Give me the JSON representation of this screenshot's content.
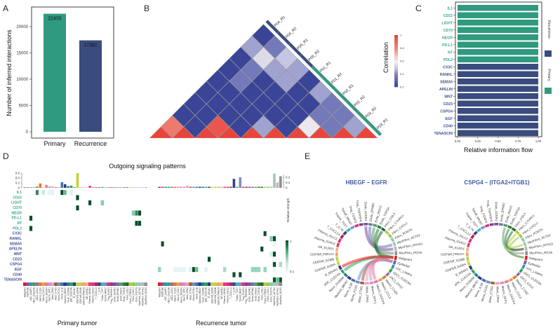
{
  "panel_letters": [
    "A",
    "B",
    "C",
    "D",
    "E"
  ],
  "colors": {
    "primary": "#2f9a80",
    "recurrence": "#3a4c7d",
    "label_green": "#3aa68b",
    "label_navy": "#3d4f8f",
    "title_blue": "#3f58a0"
  },
  "cell_types": [
    "Malignant",
    "Epithelial",
    "cDC_LAMP3",
    "cDC1_CLEC9A",
    "cDC2_CD1C",
    "Macro_C1QC",
    "Macro_CCL3",
    "Macro_DOCK4",
    "Macro_SPP1",
    "Mast_CPA3",
    "Mast_CTSG",
    "Mono_FCN1",
    "Mono_IL1B",
    "Myeloid_MKI67",
    "Neutr_S100A8",
    "pDC_CLEC4A",
    "B_MS4A1",
    "CD8Teff_GZMA",
    "CD8Teff_GZMB",
    "CD8Teff_PRKCH",
    "NK_KLRD1",
    "Plasma_IGHG2",
    "Plasma_IGLC2",
    "T_CXCL13",
    "T_IL7R",
    "Tnaive_TCF7",
    "Tprolif_MKI67",
    "Treg_FOXP3",
    "Treg_TNFRSF4",
    "Endo_ACKR1",
    "Endo_EFNB2",
    "Endo_RGCC",
    "Endo_TOP2A",
    "Fibro_COL3",
    "Fibro_CTHRC1",
    "Fibro_CXCL1",
    "Fibro_POSTN",
    "MyoFibro_ACTA2",
    "MyoFibro_MYH11",
    "MyoFibro_RGS5"
  ],
  "cell_colors": [
    "#e41a1c",
    "#7a5aa0",
    "#2f8fc0",
    "#3aa24a",
    "#9a6aa8",
    "#e07b2a",
    "#f29a55",
    "#e8779f",
    "#c993c6",
    "#ef9ec1",
    "#a05a2c",
    "#6e8fc8",
    "#4d6fae",
    "#263a8f",
    "#1f7f8a",
    "#2ca25f",
    "#2b3a8a",
    "#c6d33c",
    "#b9d448",
    "#f6a16a",
    "#f0b57e",
    "#e5397a",
    "#d2337f",
    "#b5235a",
    "#3a3f86",
    "#3ab7c8",
    "#8a8ac0",
    "#d4317c",
    "#8b3a8f",
    "#7a4d9a",
    "#6a74b5",
    "#5e9a6e",
    "#2e7d3a",
    "#1f6a30",
    "#b5c93a",
    "#9cc83c",
    "#7fcdb0",
    "#a0c8b8",
    "#b8b8b8",
    "#8f8f8f"
  ],
  "chart_data": [
    {
      "type": "bar",
      "title": "",
      "ylabel": "Number of inferred interactions",
      "categories": [
        "Primary",
        "Recurrence"
      ],
      "values": [
        22455,
        17391
      ],
      "value_labels": [
        "22455",
        "17391"
      ],
      "yticks": [
        "0",
        "5000",
        "10000",
        "15000",
        "20000"
      ],
      "ylim": [
        0,
        23500
      ]
    },
    {
      "type": "heatmap",
      "title": "",
      "legend_title": "Correlation",
      "legend_ticks": [
        "0.2",
        "0.4",
        "0.6",
        "0.8",
        "1"
      ],
      "samples": [
        "P04_R1",
        "P04_R2",
        "P05_R1",
        "P05_R2",
        "P01_R1",
        "P01_R2",
        "P02_R1",
        "P02_R2",
        "P03_R2",
        "P03_R1"
      ],
      "sample_groups": [
        "Recurrence",
        "Recurrence",
        "Recurrence",
        "Recurrence",
        "Primary",
        "Primary",
        "Primary",
        "Primary",
        "Primary",
        "Primary"
      ],
      "values_by_offset": [
        [
          1,
          1,
          1,
          1,
          1,
          1,
          1,
          1,
          1,
          1
        ],
        [
          0.85,
          0.22,
          0.95,
          0.22,
          0.45,
          0.22,
          0.58,
          0.38,
          0.45
        ],
        [
          0.22,
          0.22,
          0.22,
          0.22,
          0.22,
          0.22,
          0.38,
          0.38
        ],
        [
          0.22,
          0.22,
          0.22,
          0.22,
          0.22,
          0.22,
          0.38
        ],
        [
          0.22,
          0.22,
          0.22,
          0.22,
          0.22,
          0.45
        ],
        [
          0.22,
          0.38,
          0.22,
          0.45,
          0.22
        ],
        [
          0.22,
          0.38,
          0.45,
          0.45
        ],
        [
          0.22,
          0.55,
          0.5
        ],
        [
          0.45,
          0.38
        ],
        [
          0.22
        ]
      ]
    },
    {
      "type": "bar",
      "orientation": "horizontal",
      "categories": [
        "IL1",
        "CD22",
        "LIGHT",
        "CD70",
        "NEGR",
        "PD-L1",
        "NT",
        "PDL2",
        "CX3C",
        "RANKL",
        "SEMA5",
        "APELIN",
        "WNT",
        "CD23",
        "CSPG4",
        "EGF",
        "CD40",
        "TENASCIN"
      ],
      "groups": [
        "Primary",
        "Primary",
        "Primary",
        "Primary",
        "Primary",
        "Primary",
        "Primary",
        "Primary",
        "Recurrence",
        "Recurrence",
        "Recurrence",
        "Recurrence",
        "Recurrence",
        "Recurrence",
        "Recurrence",
        "Recurrence",
        "Recurrence",
        "Recurrence"
      ],
      "values": [
        1,
        1,
        1,
        1,
        1,
        1,
        1,
        1,
        1,
        1,
        1,
        1,
        1,
        1,
        1,
        1,
        1,
        1
      ],
      "xlabel": "Relative information flow",
      "xticks": [
        "0.00",
        "0.25",
        "0.50",
        "0.75",
        "1.00"
      ],
      "legend": [
        "Recurrence",
        "Primary"
      ]
    },
    {
      "type": "heatmap",
      "title": "Outgoing signaling patterns",
      "legend_title": "Relative strength",
      "legend_ticks": [
        "1",
        "0.1"
      ],
      "panels": [
        {
          "name": "Primary tumor",
          "bar_ticks": [
            "0",
            "0.2",
            "0.4",
            "0.6"
          ],
          "bar_max": 0.6,
          "bars": [
            0.02,
            0.02,
            0.02,
            0.02,
            0.05,
            0.18,
            0.02,
            0.12,
            0.06,
            0.06,
            0.02,
            0.02,
            0.23,
            0.15,
            0.07,
            0.09,
            0.02,
            0.6,
            0.02,
            0.02,
            0.02,
            0.08,
            0.02,
            0.02,
            0.02,
            0.04,
            0.02,
            0.02,
            0.02,
            0.02,
            0.02,
            0.02,
            0.02,
            0.02,
            0.02,
            0.02,
            0.02,
            0.02,
            0.02,
            0.02
          ],
          "cells": [
            [
              0,
              4,
              0.8
            ],
            [
              0,
              6,
              0.3
            ],
            [
              0,
              8,
              0.1
            ],
            [
              0,
              9,
              0.1
            ],
            [
              0,
              12,
              1
            ],
            [
              0,
              13,
              0.6
            ],
            [
              0,
              15,
              0.15
            ],
            [
              1,
              17,
              1
            ],
            [
              2,
              21,
              1
            ],
            [
              2,
              25,
              0.5
            ],
            [
              3,
              17,
              1
            ],
            [
              4,
              35,
              0.5
            ],
            [
              4,
              36,
              0.8
            ],
            [
              4,
              37,
              1
            ],
            [
              5,
              2,
              1
            ],
            [
              6,
              36,
              1
            ],
            [
              6,
              37,
              1
            ],
            [
              7,
              2,
              1
            ]
          ]
        },
        {
          "name": "Recurrence tumor",
          "bar_ticks": [
            "0",
            "0.1",
            "0.2"
          ],
          "bar_max": 0.25,
          "bars": [
            0.02,
            0.02,
            0.02,
            0.02,
            0.02,
            0.02,
            0.02,
            0.02,
            0.02,
            0.04,
            0.02,
            0.02,
            0.02,
            0.02,
            0.02,
            0.02,
            0.02,
            0.02,
            0.02,
            0.02,
            0.02,
            0.02,
            0.02,
            0.02,
            0.17,
            0.02,
            0.2,
            0.02,
            0.02,
            0.02,
            0.02,
            0.02,
            0.02,
            0.02,
            0.02,
            0.02,
            0.02,
            0.27,
            0.1,
            0.22
          ],
          "cells": [
            [
              8,
              34,
              1
            ],
            [
              9,
              36,
              0.5
            ],
            [
              9,
              37,
              1
            ],
            [
              10,
              1,
              1
            ],
            [
              10,
              37,
              0.05
            ],
            [
              11,
              33,
              1
            ],
            [
              12,
              36,
              0.2
            ],
            [
              12,
              37,
              1
            ],
            [
              13,
              16,
              1
            ],
            [
              14,
              37,
              1
            ],
            [
              14,
              39,
              0.4
            ],
            [
              15,
              0,
              0.45
            ],
            [
              15,
              5,
              0.08
            ],
            [
              15,
              6,
              0.08
            ],
            [
              15,
              7,
              0.08
            ],
            [
              15,
              8,
              0.08
            ],
            [
              15,
              10,
              0.15
            ],
            [
              15,
              11,
              1
            ],
            [
              15,
              12,
              0.6
            ],
            [
              15,
              15,
              0.15
            ],
            [
              15,
              21,
              0.4
            ],
            [
              15,
              30,
              0.45
            ],
            [
              15,
              31,
              0.45
            ],
            [
              15,
              32,
              0.45
            ],
            [
              15,
              34,
              0.45
            ],
            [
              15,
              37,
              0.05
            ],
            [
              16,
              24,
              1
            ],
            [
              16,
              26,
              1
            ],
            [
              17,
              37,
              1
            ],
            [
              17,
              38,
              0.6
            ],
            [
              17,
              39,
              1
            ]
          ]
        }
      ]
    },
    {
      "type": "chord",
      "title": "HBEGF – EGFR",
      "links": [
        [
          "Endo_ACKR1",
          "MyoFibro_MYH11"
        ],
        [
          "Endo_EFNB2",
          "MyoFibro_ACTA2"
        ],
        [
          "Endo_RGCC",
          "MyoFibro_RGS5"
        ],
        [
          "Endo_TOP2A",
          "Malignant"
        ],
        [
          "Fibro_COL3",
          "Epithelial"
        ],
        [
          "pDC_CLEC4A",
          "Malignant"
        ],
        [
          "Mono_FCN1",
          "Epithelial"
        ],
        [
          "Mast_CTSG",
          "Epithelial"
        ],
        [
          "Mast_CPA3",
          "Epithelial"
        ],
        [
          "Macro_SPP1",
          "Epithelial"
        ],
        [
          "Macro_DOCK4",
          "Malignant"
        ],
        [
          "Malignant",
          "B_MS4A1"
        ]
      ]
    },
    {
      "type": "chord",
      "title": "CSPG4 – (ITGA2+ITGB1)",
      "links": [
        [
          "Endo_TOP2A",
          "MyoFibro_MYH11"
        ],
        [
          "Fibro_COL3",
          "MyoFibro_MYH11"
        ],
        [
          "Fibro_CTHRC1",
          "MyoFibro_ACTA2"
        ],
        [
          "Fibro_CXCL1",
          "Malignant"
        ],
        [
          "MyoFibro_RGS5",
          "MyoFibro_MYH11"
        ],
        [
          "Endo_RGCC",
          "Malignant"
        ]
      ]
    }
  ]
}
